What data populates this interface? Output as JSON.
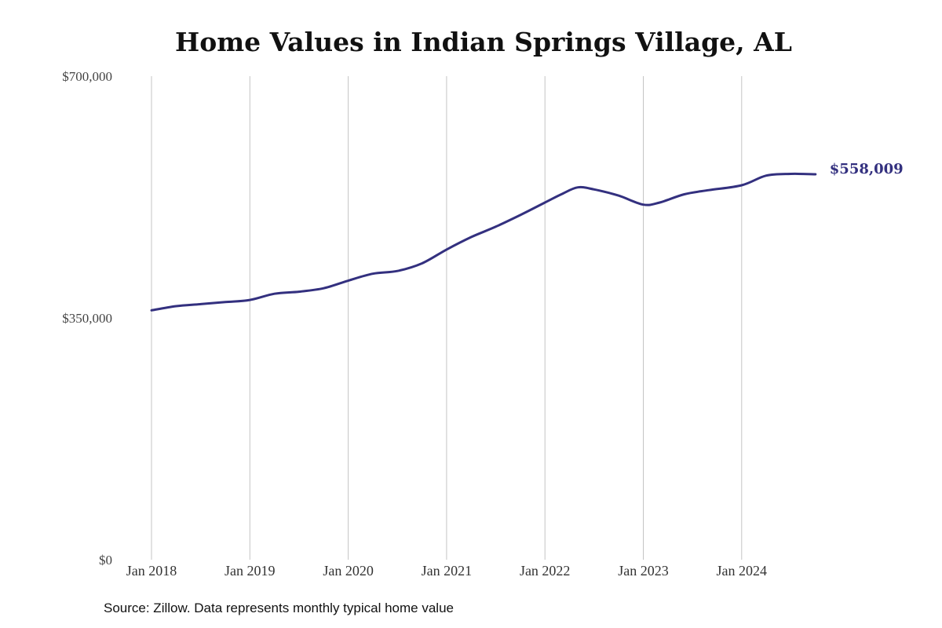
{
  "chart_data": {
    "type": "line",
    "title": "Home Values in Indian Springs Village, AL",
    "xlabel": "",
    "ylabel": "",
    "x_ticks": [
      "Jan 2018",
      "Jan 2019",
      "Jan 2020",
      "Jan 2021",
      "Jan 2022",
      "Jan 2023",
      "Jan 2024"
    ],
    "y_ticks": [
      "$700,000",
      "$350,000",
      "$0"
    ],
    "ylim": [
      0,
      700000
    ],
    "grid": "vertical",
    "line_color": "#33307f",
    "series": [
      {
        "x": [
          "2018-01",
          "2018-04",
          "2018-07",
          "2018-10",
          "2019-01",
          "2019-04",
          "2019-07",
          "2019-10",
          "2020-01",
          "2020-04",
          "2020-07",
          "2020-10",
          "2021-01",
          "2021-04",
          "2021-07",
          "2021-10",
          "2022-01",
          "2022-03",
          "2022-05",
          "2022-07",
          "2022-10",
          "2023-01",
          "2023-03",
          "2023-06",
          "2023-09",
          "2024-01",
          "2024-04",
          "2024-07",
          "2024-10"
        ],
        "values": [
          361000,
          367000,
          370000,
          373000,
          376000,
          385000,
          388000,
          393000,
          404000,
          414000,
          418000,
          429000,
          449000,
          467000,
          482000,
          499000,
          517000,
          529000,
          539000,
          536000,
          527000,
          514000,
          517000,
          529000,
          535000,
          542000,
          556000,
          558500,
          558009
        ]
      }
    ],
    "end_label": "$558,009"
  },
  "source_note": "Source: Zillow. Data represents monthly typical home value"
}
